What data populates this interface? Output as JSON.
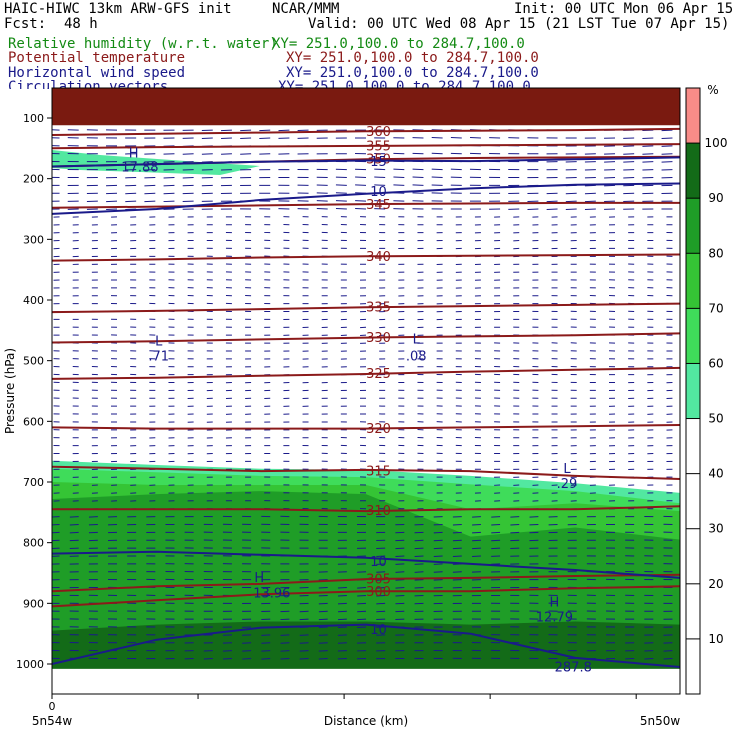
{
  "header": {
    "model": "HAIC-HIWC 13km ARW-GFS init",
    "org": "NCAR/MMM",
    "init": "Init: 00 UTC Mon 06 Apr 15",
    "fcst_label": "Fcst:",
    "fcst_value": "48 h",
    "valid": "Valid: 00 UTC Wed 08 Apr 15 (21 LST Tue 07 Apr 15)"
  },
  "fields": [
    {
      "name": "Relative humidity (w.r.t. water)",
      "xy": "XY= 251.0,100.0 to 284.7,100.0",
      "color": "#138a13"
    },
    {
      "name": "Potential temperature",
      "xy": "XY= 251.0,100.0 to 284.7,100.0",
      "color": "#8b1a1a"
    },
    {
      "name": "Horizontal wind speed",
      "xy": "XY= 251.0,100.0 to 284.7,100.0",
      "color": "#1a1a8a"
    },
    {
      "name": "Circulation vectors",
      "xy": "XY= 251.0,100.0 to 284.7,100.0",
      "color": "#1a1a8a"
    }
  ],
  "chart_data": {
    "type": "heatmap",
    "ylabel": "Pressure (hPa)",
    "xlabel": "Distance (km)",
    "yticks": [
      100,
      200,
      300,
      400,
      500,
      600,
      700,
      800,
      900,
      1000
    ],
    "ylim": [
      1050,
      20
    ],
    "xlim": [
      0,
      1
    ],
    "x_tick_label": "0",
    "x_end_labels": [
      "5n54w",
      "5n50w"
    ],
    "colorbar": {
      "unit": "%",
      "ticks": [
        10,
        20,
        30,
        40,
        50,
        60,
        70,
        80,
        90,
        100
      ],
      "bands": [
        {
          "from": 0,
          "to": 50,
          "color": "#ffffff"
        },
        {
          "from": 50,
          "to": 60,
          "color": "#52e8a0"
        },
        {
          "from": 60,
          "to": 70,
          "color": "#3fdc5a"
        },
        {
          "from": 70,
          "to": 80,
          "color": "#35c435"
        },
        {
          "from": 80,
          "to": 90,
          "color": "#1f9d27"
        },
        {
          "from": 90,
          "to": 100,
          "color": "#136b18"
        },
        {
          "from": 100,
          "to": 110,
          "color": "#f88c88"
        }
      ]
    },
    "theta_contours": [
      {
        "label": "300",
        "p": [
          905,
          895,
          885,
          880,
          880,
          875,
          872
        ],
        "color": "#8b1a1a"
      },
      {
        "label": "305",
        "p": [
          880,
          872,
          868,
          860,
          858,
          855,
          853
        ],
        "color": "#8b1a1a"
      },
      {
        "label": "310",
        "p": [
          745,
          745,
          745,
          748,
          745,
          745,
          740
        ],
        "color": "#8b1a1a"
      },
      {
        "label": "315",
        "p": [
          675,
          678,
          682,
          680,
          682,
          690,
          695
        ],
        "color": "#8b1a1a"
      },
      {
        "label": "320",
        "p": [
          610,
          612,
          612,
          612,
          610,
          608,
          606
        ],
        "color": "#8b1a1a"
      },
      {
        "label": "325",
        "p": [
          530,
          528,
          525,
          522,
          518,
          515,
          512
        ],
        "color": "#8b1a1a"
      },
      {
        "label": "330",
        "p": [
          470,
          468,
          465,
          462,
          460,
          458,
          455
        ],
        "color": "#8b1a1a"
      },
      {
        "label": "335",
        "p": [
          420,
          418,
          415,
          412,
          410,
          408,
          406
        ],
        "color": "#8b1a1a"
      },
      {
        "label": "340",
        "p": [
          335,
          333,
          330,
          328,
          327,
          326,
          325
        ],
        "color": "#8b1a1a"
      },
      {
        "label": "345",
        "p": [
          248,
          246,
          244,
          242,
          241,
          240,
          240
        ],
        "color": "#8b1a1a"
      },
      {
        "label": "350",
        "p": [
          180,
          176,
          172,
          168,
          166,
          165,
          164
        ],
        "color": "#8b1a1a"
      },
      {
        "label": "355",
        "p": [
          150,
          148,
          147,
          146,
          145,
          144,
          143
        ],
        "color": "#8b1a1a"
      },
      {
        "label": "360",
        "p": [
          128,
          126,
          124,
          122,
          121,
          120,
          118
        ],
        "color": "#8b1a1a"
      }
    ],
    "wind_contours": [
      {
        "label": "10",
        "p": [
          258,
          250,
          235,
          225,
          216,
          210,
          208
        ],
        "color": "#1a1a8a"
      },
      {
        "label": "15",
        "p": [
          180,
          176,
          172,
          170,
          171,
          168,
          165
        ],
        "color": "#1a1a8a"
      },
      {
        "label": "10",
        "p": [
          818,
          815,
          820,
          825,
          835,
          845,
          858
        ],
        "color": "#1a1a8a"
      },
      {
        "label": "10",
        "p": [
          1000,
          960,
          940,
          935,
          950,
          990,
          1005
        ],
        "color": "#1a1a8a"
      }
    ],
    "annotations": [
      {
        "text": "H",
        "x": 0.13,
        "p": 165
      },
      {
        "text": "17.88",
        "x": 0.14,
        "p": 188
      },
      {
        "text": "L",
        "x": 0.17,
        "p": 475
      },
      {
        "text": ".71",
        "x": 0.17,
        "p": 500
      },
      {
        "text": "L",
        "x": 0.58,
        "p": 472
      },
      {
        "text": ".08",
        "x": 0.58,
        "p": 500
      },
      {
        "text": "L",
        "x": 0.82,
        "p": 685
      },
      {
        "text": ".29",
        "x": 0.82,
        "p": 710
      },
      {
        "text": "H",
        "x": 0.33,
        "p": 865
      },
      {
        "text": "13.96",
        "x": 0.35,
        "p": 890
      },
      {
        "text": "H",
        "x": 0.8,
        "p": 905
      },
      {
        "text": "12.79",
        "x": 0.8,
        "p": 930
      },
      {
        "text": "287.8",
        "x": 0.83,
        "p": 1012
      }
    ]
  }
}
